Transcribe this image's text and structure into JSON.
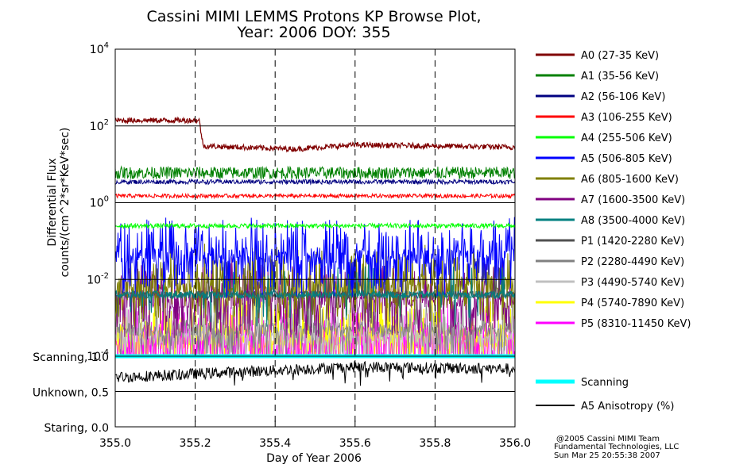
{
  "chart_data": {
    "type": "line",
    "title": "Cassini MIMI LEMMS Protons KP Browse Plot,",
    "subtitle": "Year: 2006 DOY: 355",
    "xlabel": "Day of Year 2006",
    "ylabel_line1": "Differential Flux",
    "ylabel_line2": "counts/(cm^2*sr*KeV*sec)",
    "x_range": [
      355.0,
      356.0
    ],
    "x_ticks": [
      "355.0",
      "355.2",
      "355.4",
      "355.6",
      "355.8",
      "356.0"
    ],
    "x_tick_values": [
      355.0,
      355.2,
      355.4,
      355.6,
      355.8,
      356.0
    ],
    "y_scale": "log",
    "y_range": [
      0.0001,
      10000
    ],
    "y_tick_values": [
      0.0001,
      0.01,
      1,
      100,
      10000
    ],
    "y_ticks": [
      {
        "base": "10",
        "exp": "-4"
      },
      {
        "base": "10",
        "exp": "-2"
      },
      {
        "base": "10",
        "exp": "0"
      },
      {
        "base": "10",
        "exp": "2"
      },
      {
        "base": "10",
        "exp": "4"
      }
    ],
    "vertical_dashed_lines_at": [
      355.2,
      355.4,
      355.6,
      355.8
    ],
    "series": [
      {
        "name": "A0 (27-35 KeV)",
        "color": "#800000",
        "values": [
          [
            355.0,
            140
          ],
          [
            355.21,
            140
          ],
          [
            355.22,
            30
          ],
          [
            355.45,
            25
          ],
          [
            355.6,
            32
          ],
          [
            356.0,
            28
          ]
        ]
      },
      {
        "name": "A1 (35-56 KeV)",
        "color": "#008000",
        "values": [
          [
            355.0,
            6
          ],
          [
            356.0,
            6
          ]
        ]
      },
      {
        "name": "A2 (56-106 KeV)",
        "color": "#000080",
        "values": [
          [
            355.0,
            3.5
          ],
          [
            356.0,
            3.5
          ]
        ]
      },
      {
        "name": "A3 (106-255 KeV)",
        "color": "#ff0000",
        "values": [
          [
            355.0,
            1.5
          ],
          [
            356.0,
            1.5
          ]
        ]
      },
      {
        "name": "A4 (255-506 KeV)",
        "color": "#00ff00",
        "values": [
          [
            355.0,
            0.25
          ],
          [
            356.0,
            0.25
          ]
        ]
      },
      {
        "name": "A5 (506-805 KeV)",
        "color": "#0000ff",
        "values": [
          [
            355.0,
            0.04
          ],
          [
            356.0,
            0.04
          ]
        ]
      },
      {
        "name": "A6 (805-1600 KeV)",
        "color": "#808000",
        "values": [
          [
            355.0,
            0.007
          ],
          [
            356.0,
            0.007
          ]
        ]
      },
      {
        "name": "A7 (1600-3500 KeV)",
        "color": "#800080",
        "values": [
          [
            355.0,
            0.003
          ],
          [
            356.0,
            0.003
          ]
        ]
      },
      {
        "name": "A8 (3500-4000 KeV)",
        "color": "#008080",
        "values": [
          [
            355.0,
            0.004
          ],
          [
            356.0,
            0.004
          ]
        ]
      },
      {
        "name": "P1 (1420-2280 KeV)",
        "color": "#505050",
        "values": [
          [
            355.0,
            0.004
          ],
          [
            356.0,
            0.004
          ]
        ]
      },
      {
        "name": "P2 (2280-4490 KeV)",
        "color": "#808080",
        "values": [
          [
            355.0,
            0.0005
          ],
          [
            356.0,
            0.0005
          ]
        ]
      },
      {
        "name": "P3 (4490-5740 KeV)",
        "color": "#c0c0c0",
        "values": [
          [
            355.0,
            0.0003
          ],
          [
            356.0,
            0.0003
          ]
        ]
      },
      {
        "name": "P4 (5740-7890 KeV)",
        "color": "#ffff00",
        "values": [
          [
            355.0,
            0.0003
          ],
          [
            356.0,
            0.0003
          ]
        ]
      },
      {
        "name": "P5 (8310-11450 KeV)",
        "color": "#ff00ff",
        "values": [
          [
            355.0,
            0.00015
          ],
          [
            356.0,
            0.00015
          ]
        ]
      }
    ],
    "lower_panel": {
      "y_ticks": [
        "Scanning, 1.0",
        "Unknown, 0.5",
        "Staring, 0.0"
      ],
      "y_tick_values": [
        1.0,
        0.5,
        0.0
      ],
      "y_range": [
        0.0,
        1.0
      ],
      "series": [
        {
          "name": "Scanning",
          "color": "#00ffff",
          "values": [
            [
              355.0,
              1.0
            ],
            [
              356.0,
              1.0
            ]
          ]
        },
        {
          "name": "A5 Anisotropy (%)",
          "color": "#000000",
          "values": [
            [
              355.0,
              0.7
            ],
            [
              355.2,
              0.75
            ],
            [
              355.6,
              0.85
            ],
            [
              356.0,
              0.82
            ]
          ]
        }
      ]
    },
    "legend_placement": "right",
    "footer": [
      "@2005 Cassini MIMI Team",
      "Fundamental Technologies, LLC",
      "Sun Mar 25 20:55:38 2007"
    ]
  }
}
